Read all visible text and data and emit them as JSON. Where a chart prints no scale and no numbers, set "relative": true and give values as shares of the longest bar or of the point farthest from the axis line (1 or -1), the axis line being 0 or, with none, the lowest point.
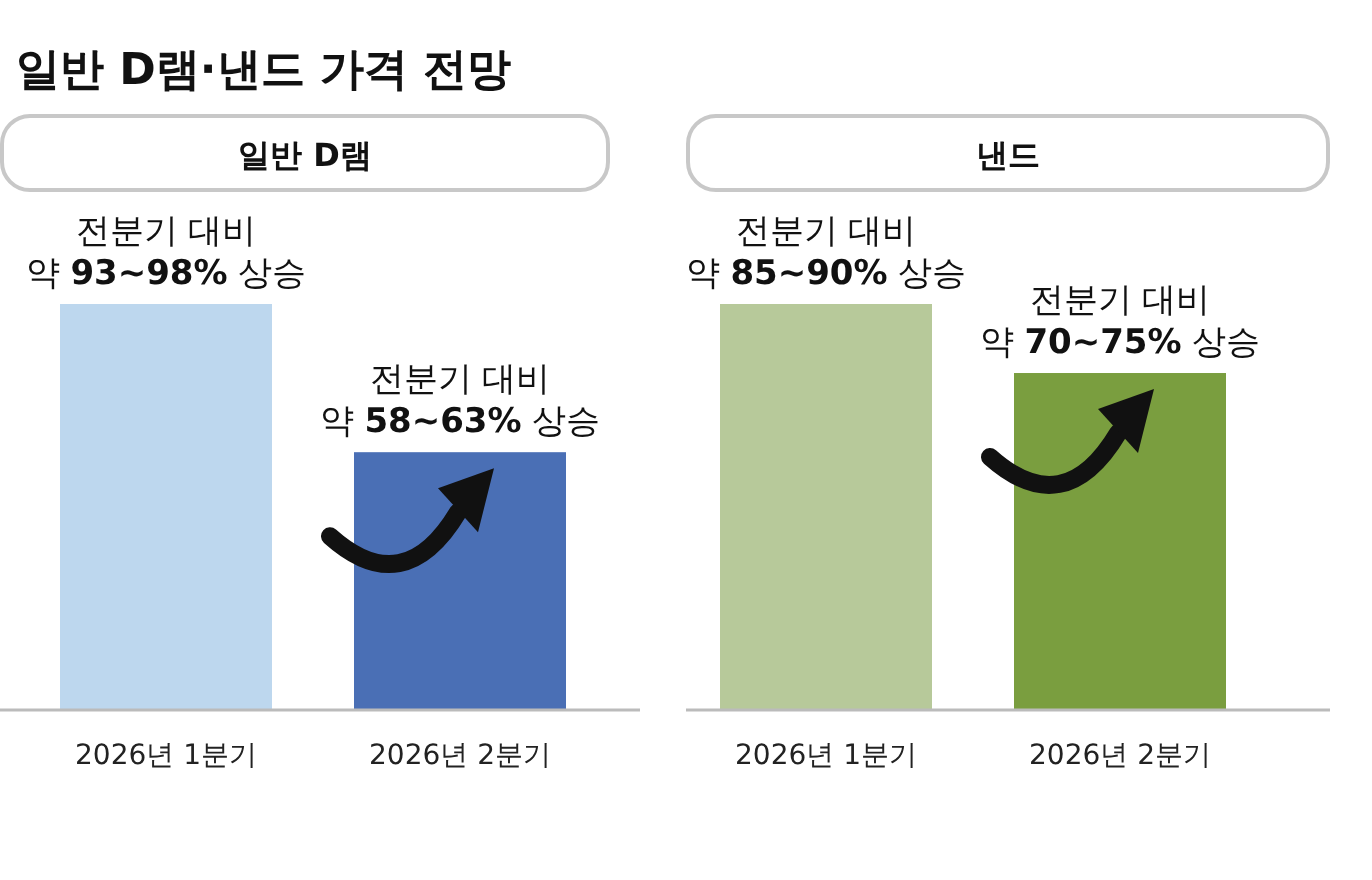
{
  "chart_data": [
    {
      "type": "bar",
      "title": "일반 D램·낸드 가격 전망",
      "subtitle": "일반 D램",
      "categories": [
        "2026년 1분기",
        "2026년 2분기"
      ],
      "values": [
        1,
        0.635
      ],
      "colors": [
        "#bdd7ee",
        "#4a6fb5"
      ],
      "relative": true,
      "annotations": [
        {
          "text": "전분기 대비\n약 **93~98%** 상승",
          "x": "2026년 1분기",
          "y": 1
        },
        {
          "text": "전분기 대비\n약 **58~63%** 상승",
          "x": "2026년 2분기",
          "y": 0.635
        }
      ]
    },
    {
      "type": "bar",
      "title": "낸드",
      "categories": [
        "2026년 1분기",
        "2026년 2분기"
      ],
      "values": [
        1,
        0.83
      ],
      "colors": [
        "#b7c99a",
        "#7a9e3f"
      ],
      "relative": true,
      "annotations": [
        {
          "text": "전분기 대비\n약 **85~90%** 상승",
          "x": "2026년 1분기",
          "y": 1
        },
        {
          "text": "전분기 대비\n약 **70~75%** 상승",
          "x": "2026년 2분기",
          "y": 0.83
        }
      ]
    }
  ]
}
